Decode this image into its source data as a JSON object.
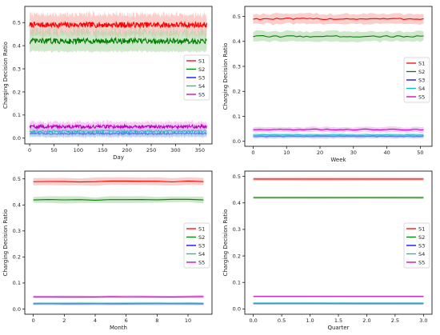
{
  "chart_data": [
    {
      "type": "line",
      "xlabel": "Day",
      "ylabel": "Charging Decision Ratio",
      "xlim": [
        -10,
        375
      ],
      "ylim": [
        -0.025,
        0.57
      ],
      "xticks": [
        "0",
        "50",
        "100",
        "150",
        "200",
        "250",
        "300",
        "350"
      ],
      "xtick_values": [
        0,
        50,
        100,
        150,
        200,
        250,
        300,
        350
      ],
      "yticks": [
        "0.0",
        "0.1",
        "0.2",
        "0.3",
        "0.4",
        "0.5"
      ],
      "ytick_values": [
        0,
        0.1,
        0.2,
        0.3,
        0.4,
        0.5
      ],
      "x_range": [
        0,
        364
      ],
      "n_points": 365,
      "legend_position": "center-right",
      "series": [
        {
          "name": "S1",
          "mean": 0.49,
          "band": 0.045,
          "noise": 0.012,
          "color": "#ff0000",
          "band_color": "#f4a6a0"
        },
        {
          "name": "S2",
          "mean": 0.42,
          "band": 0.045,
          "noise": 0.012,
          "color": "#008000",
          "band_color": "#a8d3a0"
        },
        {
          "name": "S3",
          "mean": 0.02,
          "band": 0.015,
          "noise": 0.004,
          "color": "#0000ff",
          "band_color": "#a0a8ee"
        },
        {
          "name": "S4",
          "mean": 0.03,
          "band": 0.02,
          "noise": 0.005,
          "color": "#00bfbf",
          "band_color": "#a0dede"
        },
        {
          "name": "S5",
          "mean": 0.05,
          "band": 0.02,
          "noise": 0.007,
          "color": "#bf00bf",
          "band_color": "#eea0ee"
        }
      ]
    },
    {
      "type": "line",
      "xlabel": "Week",
      "ylabel": "Charging Decision Ratio",
      "xlim": [
        -2.5,
        53.5
      ],
      "ylim": [
        -0.02,
        0.54
      ],
      "xticks": [
        "0",
        "10",
        "20",
        "30",
        "40",
        "50"
      ],
      "xtick_values": [
        0,
        10,
        20,
        30,
        40,
        50
      ],
      "yticks": [
        "0.0",
        "0.1",
        "0.2",
        "0.3",
        "0.4",
        "0.5"
      ],
      "ytick_values": [
        0,
        0.1,
        0.2,
        0.3,
        0.4,
        0.5
      ],
      "x_range": [
        0,
        51
      ],
      "n_points": 52,
      "legend_position": "center-right",
      "series": [
        {
          "name": "S1",
          "mean": 0.49,
          "band": 0.02,
          "noise": 0.003,
          "color": "#ff0000",
          "band_color": "#f4a6a0"
        },
        {
          "name": "S2",
          "mean": 0.42,
          "band": 0.02,
          "noise": 0.003,
          "color": "#008000",
          "band_color": "#a8d3a0"
        },
        {
          "name": "S3",
          "mean": 0.02,
          "band": 0.008,
          "noise": 0.001,
          "color": "#0000ff",
          "band_color": "#a0a8ee"
        },
        {
          "name": "S4",
          "mean": 0.025,
          "band": 0.008,
          "noise": 0.001,
          "color": "#00bfbf",
          "band_color": "#a0dede"
        },
        {
          "name": "S5",
          "mean": 0.047,
          "band": 0.01,
          "noise": 0.002,
          "color": "#bf00bf",
          "band_color": "#eea0ee"
        }
      ]
    },
    {
      "type": "line",
      "xlabel": "Month",
      "ylabel": "Charging Decision Ratio",
      "xlim": [
        -0.55,
        11.55
      ],
      "ylim": [
        -0.02,
        0.53
      ],
      "xticks": [
        "0",
        "2",
        "4",
        "6",
        "8",
        "10"
      ],
      "xtick_values": [
        0,
        2,
        4,
        6,
        8,
        10
      ],
      "yticks": [
        "0.0",
        "0.1",
        "0.2",
        "0.3",
        "0.4",
        "0.5"
      ],
      "ytick_values": [
        0,
        0.1,
        0.2,
        0.3,
        0.4,
        0.5
      ],
      "x_range": [
        0,
        11
      ],
      "n_points": 12,
      "legend_position": "center-right",
      "series": [
        {
          "name": "S1",
          "mean": 0.49,
          "band": 0.015,
          "noise": 0.002,
          "color": "#ff0000",
          "band_color": "#f4a6a0"
        },
        {
          "name": "S2",
          "mean": 0.42,
          "band": 0.012,
          "noise": 0.002,
          "color": "#008000",
          "band_color": "#a8d3a0"
        },
        {
          "name": "S3",
          "mean": 0.02,
          "band": 0.005,
          "noise": 0.0005,
          "color": "#0000ff",
          "band_color": "#a0a8ee"
        },
        {
          "name": "S4",
          "mean": 0.022,
          "band": 0.005,
          "noise": 0.0005,
          "color": "#00bfbf",
          "band_color": "#a0dede"
        },
        {
          "name": "S5",
          "mean": 0.047,
          "band": 0.006,
          "noise": 0.0008,
          "color": "#bf00bf",
          "band_color": "#eea0ee"
        }
      ]
    },
    {
      "type": "line",
      "xlabel": "Quarter",
      "ylabel": "Charging Decision Ratio",
      "xlim": [
        -0.15,
        3.15
      ],
      "ylim": [
        -0.02,
        0.52
      ],
      "xticks": [
        "0.0",
        "0.5",
        "1.0",
        "1.5",
        "2.0",
        "2.5",
        "3.0"
      ],
      "xtick_values": [
        0,
        0.5,
        1,
        1.5,
        2,
        2.5,
        3
      ],
      "yticks": [
        "0.0",
        "0.1",
        "0.2",
        "0.3",
        "0.4",
        "0.5"
      ],
      "ytick_values": [
        0,
        0.1,
        0.2,
        0.3,
        0.4,
        0.5
      ],
      "x_range": [
        0,
        3
      ],
      "n_points": 4,
      "legend_position": "center-right",
      "series": [
        {
          "name": "S1",
          "mean": 0.49,
          "band": 0.006,
          "noise": 0,
          "color": "#ff0000",
          "band_color": "#f4a6a0"
        },
        {
          "name": "S2",
          "mean": 0.42,
          "band": 0.005,
          "noise": 0,
          "color": "#008000",
          "band_color": "#a8d3a0"
        },
        {
          "name": "S3",
          "mean": 0.02,
          "band": 0.003,
          "noise": 0,
          "color": "#0000ff",
          "band_color": "#a0a8ee"
        },
        {
          "name": "S4",
          "mean": 0.022,
          "band": 0.003,
          "noise": 0,
          "color": "#00bfbf",
          "band_color": "#a0dede"
        },
        {
          "name": "S5",
          "mean": 0.047,
          "band": 0.003,
          "noise": 0,
          "color": "#bf00bf",
          "band_color": "#eea0ee"
        }
      ]
    }
  ]
}
